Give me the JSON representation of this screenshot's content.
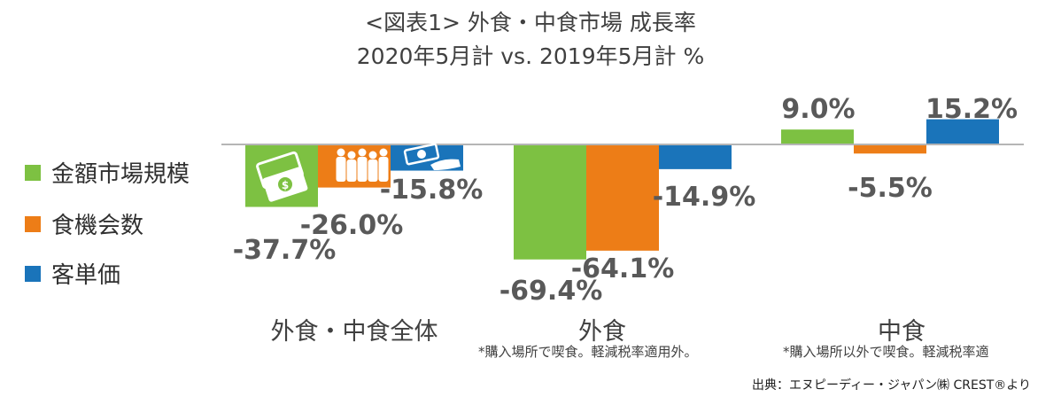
{
  "title": {
    "line1": "<図表1> 外食・中食市場 成長率",
    "line2": "2020年5月計 vs. 2019年5月計 %"
  },
  "legend": [
    {
      "label": "金額市場規模",
      "color": "#7dc142"
    },
    {
      "label": "食機会数",
      "color": "#ed7d17"
    },
    {
      "label": "客単価",
      "color": "#1a74ba"
    }
  ],
  "categories": [
    {
      "label": "外食・中食全体",
      "note": ""
    },
    {
      "label": "外食",
      "note": "*購入場所で喫食。軽減税率適用外。"
    },
    {
      "label": "中食",
      "note": "*購入場所以外で喫食。軽減税率適"
    }
  ],
  "source": "出典：エヌピーディー・ジャパン㈱ CREST®より",
  "icons": [
    "money-bills-icon",
    "people-crowd-icon",
    "hand-money-icon"
  ],
  "chart_data": {
    "type": "bar",
    "categories": [
      "外食・中食全体",
      "外食",
      "中食"
    ],
    "series": [
      {
        "name": "金額市場規模",
        "values": [
          -37.7,
          -69.4,
          9.0
        ],
        "labels": [
          "-37.7%",
          "-69.4%",
          "9.0%"
        ]
      },
      {
        "name": "食機会数",
        "values": [
          -26.0,
          -64.1,
          -5.5
        ],
        "labels": [
          "-26.0%",
          "-64.1%",
          "-5.5%"
        ]
      },
      {
        "name": "客単価",
        "values": [
          -15.8,
          -14.9,
          15.2
        ],
        "labels": [
          "-15.8%",
          "-14.9%",
          "15.2%"
        ]
      }
    ],
    "ylim": [
      -70,
      16
    ],
    "grid": false,
    "legend_position": "left"
  }
}
